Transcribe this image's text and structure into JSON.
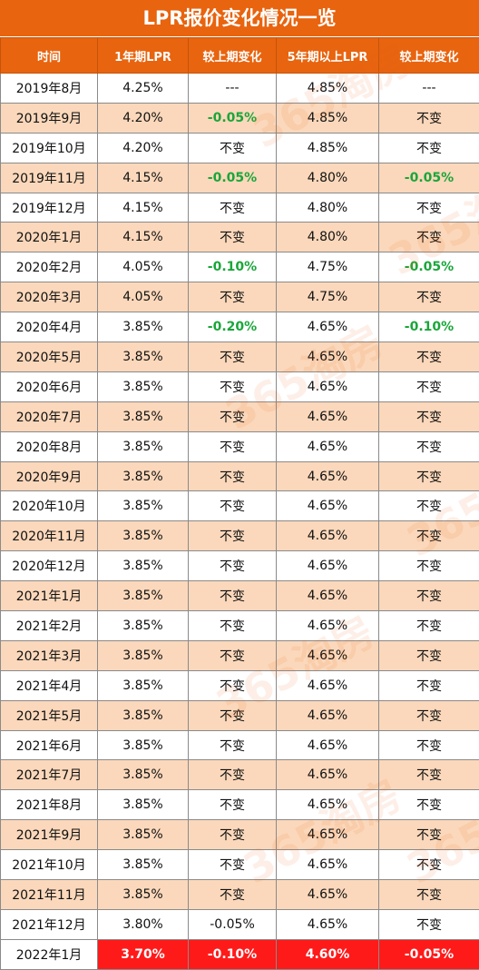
{
  "title": "LPR报价变化情况一览",
  "headers": [
    "时间",
    "1年期LPR",
    "较上期变化",
    "5年期以上LPR",
    "较上期变化"
  ],
  "rows": [
    {
      "date": "2019年8月",
      "lpr1": "4.25%",
      "chg1": "---",
      "lpr5": "4.85%",
      "chg5": "---"
    },
    {
      "date": "2019年9月",
      "lpr1": "4.20%",
      "chg1": "-0.05%",
      "lpr5": "4.85%",
      "chg5": "不变"
    },
    {
      "date": "2019年10月",
      "lpr1": "4.20%",
      "chg1": "不变",
      "lpr5": "4.85%",
      "chg5": "不变"
    },
    {
      "date": "2019年11月",
      "lpr1": "4.15%",
      "chg1": "-0.05%",
      "lpr5": "4.80%",
      "chg5": "-0.05%"
    },
    {
      "date": "2019年12月",
      "lpr1": "4.15%",
      "chg1": "不变",
      "lpr5": "4.80%",
      "chg5": "不变"
    },
    {
      "date": "2020年1月",
      "lpr1": "4.15%",
      "chg1": "不变",
      "lpr5": "4.80%",
      "chg5": "不变"
    },
    {
      "date": "2020年2月",
      "lpr1": "4.05%",
      "chg1": "-0.10%",
      "lpr5": "4.75%",
      "chg5": "-0.05%"
    },
    {
      "date": "2020年3月",
      "lpr1": "4.05%",
      "chg1": "不变",
      "lpr5": "4.75%",
      "chg5": "不变"
    },
    {
      "date": "2020年4月",
      "lpr1": "3.85%",
      "chg1": "-0.20%",
      "lpr5": "4.65%",
      "chg5": "-0.10%"
    },
    {
      "date": "2020年5月",
      "lpr1": "3.85%",
      "chg1": "不变",
      "lpr5": "4.65%",
      "chg5": "不变"
    },
    {
      "date": "2020年6月",
      "lpr1": "3.85%",
      "chg1": "不变",
      "lpr5": "4.65%",
      "chg5": "不变"
    },
    {
      "date": "2020年7月",
      "lpr1": "3.85%",
      "chg1": "不变",
      "lpr5": "4.65%",
      "chg5": "不变"
    },
    {
      "date": "2020年8月",
      "lpr1": "3.85%",
      "chg1": "不变",
      "lpr5": "4.65%",
      "chg5": "不变"
    },
    {
      "date": "2020年9月",
      "lpr1": "3.85%",
      "chg1": "不变",
      "lpr5": "4.65%",
      "chg5": "不变"
    },
    {
      "date": "2020年10月",
      "lpr1": "3.85%",
      "chg1": "不变",
      "lpr5": "4.65%",
      "chg5": "不变"
    },
    {
      "date": "2020年11月",
      "lpr1": "3.85%",
      "chg1": "不变",
      "lpr5": "4.65%",
      "chg5": "不变"
    },
    {
      "date": "2020年12月",
      "lpr1": "3.85%",
      "chg1": "不变",
      "lpr5": "4.65%",
      "chg5": "不变"
    },
    {
      "date": "2021年1月",
      "lpr1": "3.85%",
      "chg1": "不变",
      "lpr5": "4.65%",
      "chg5": "不变"
    },
    {
      "date": "2021年2月",
      "lpr1": "3.85%",
      "chg1": "不变",
      "lpr5": "4.65%",
      "chg5": "不变"
    },
    {
      "date": "2021年3月",
      "lpr1": "3.85%",
      "chg1": "不变",
      "lpr5": "4.65%",
      "chg5": "不变"
    },
    {
      "date": "2021年4月",
      "lpr1": "3.85%",
      "chg1": "不变",
      "lpr5": "4.65%",
      "chg5": "不变"
    },
    {
      "date": "2021年5月",
      "lpr1": "3.85%",
      "chg1": "不变",
      "lpr5": "4.65%",
      "chg5": "不变"
    },
    {
      "date": "2021年6月",
      "lpr1": "3.85%",
      "chg1": "不变",
      "lpr5": "4.65%",
      "chg5": "不变"
    },
    {
      "date": "2021年7月",
      "lpr1": "3.85%",
      "chg1": "不变",
      "lpr5": "4.65%",
      "chg5": "不变"
    },
    {
      "date": "2021年8月",
      "lpr1": "3.85%",
      "chg1": "不变",
      "lpr5": "4.65%",
      "chg5": "不变"
    },
    {
      "date": "2021年9月",
      "lpr1": "3.85%",
      "chg1": "不变",
      "lpr5": "4.65%",
      "chg5": "不变"
    },
    {
      "date": "2021年10月",
      "lpr1": "3.85%",
      "chg1": "不变",
      "lpr5": "4.65%",
      "chg5": "不变"
    },
    {
      "date": "2021年11月",
      "lpr1": "3.85%",
      "chg1": "不变",
      "lpr5": "4.65%",
      "chg5": "不变"
    },
    {
      "date": "2021年12月",
      "lpr1": "3.80%",
      "chg1": "-0.05%",
      "lpr5": "4.65%",
      "chg5": "不变"
    },
    {
      "date": "2022年1月",
      "lpr1": "3.70%",
      "chg1": "-0.10%",
      "lpr5": "4.60%",
      "chg5": "-0.05%"
    }
  ],
  "highlight_row_index": 29,
  "colors": {
    "header": "#e8640f",
    "stripe": "#fbd8bb",
    "decrease": "#1aa63a",
    "highlight": "#ff1a1a"
  },
  "watermark": "365淘房"
}
